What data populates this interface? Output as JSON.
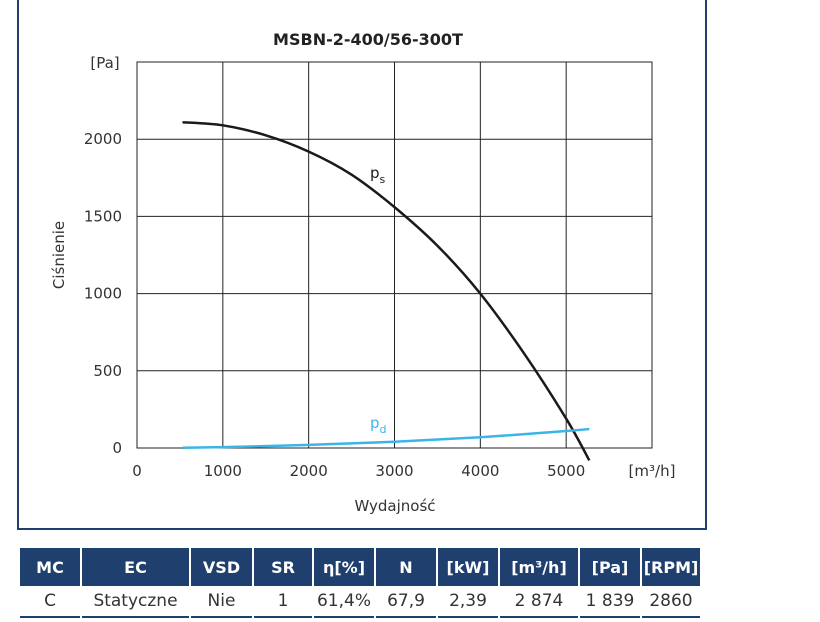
{
  "chart_data": {
    "type": "line",
    "title": "MSBN-2-400/56-300T",
    "xlabel": "Wydajność",
    "ylabel": "Ciśnienie",
    "x_unit": "[m³/h]",
    "y_unit": "[Pa]",
    "xlim": [
      0,
      6000
    ],
    "ylim": [
      0,
      2500
    ],
    "x_ticks": [
      "0",
      "1000",
      "2000",
      "3000",
      "4000",
      "5000"
    ],
    "y_ticks": [
      "0",
      "500",
      "1000",
      "1500",
      "2000"
    ],
    "grid": true,
    "series": [
      {
        "name": "ps",
        "color": "#1a1a1a",
        "x": [
          530,
          1000,
          1500,
          2000,
          2500,
          3000,
          3500,
          4000,
          4500,
          5000,
          5270
        ],
        "y": [
          2110,
          2090,
          2025,
          1920,
          1770,
          1560,
          1310,
          1000,
          620,
          190,
          -80
        ]
      },
      {
        "name": "pd",
        "color": "#3bb5e8",
        "x": [
          530,
          1000,
          2000,
          3000,
          4000,
          5000,
          5270
        ],
        "y": [
          2,
          6,
          20,
          40,
          70,
          110,
          123
        ]
      }
    ]
  },
  "table": {
    "headers": [
      "MC",
      "EC",
      "VSD",
      "SR",
      "η[%]",
      "N",
      "[kW]",
      "[m³/h]",
      "[Pa]",
      "[RPM]"
    ],
    "row": [
      "C",
      "Statyczne",
      "Nie",
      "1",
      "61,4%",
      "67,9",
      "2,39",
      "2 874",
      "1 839",
      "2860"
    ]
  }
}
